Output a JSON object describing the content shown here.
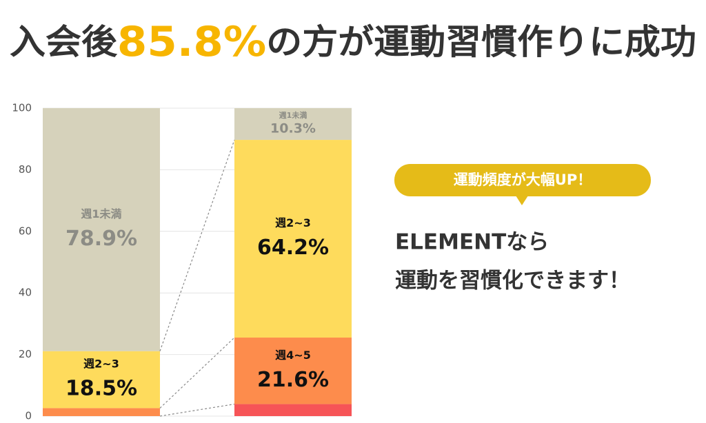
{
  "chart_data": {
    "type": "stacked_bar",
    "title": [
      "入会後",
      "85.8%",
      "の方が運動習慣作りに成功"
    ],
    "title_color": "#333333",
    "highlight_color": "#f7b500",
    "categories": [
      null,
      null
    ],
    "series": [
      {
        "name": null,
        "color": "#f65457",
        "values": [
          0,
          3.9
        ],
        "value_labels": [
          null,
          null
        ]
      },
      {
        "name": "週4~5",
        "color": "#fd8c4c",
        "values": [
          2.6,
          21.6
        ],
        "value_labels": [
          null,
          "21.6%"
        ]
      },
      {
        "name": "週2~3",
        "color": "#fedb5c",
        "values": [
          18.5,
          64.2
        ],
        "value_labels": [
          "18.5%",
          "64.2%"
        ]
      },
      {
        "name": "週1未満",
        "color": "#d6d2bb",
        "values": [
          78.9,
          10.3
        ],
        "value_labels": [
          "78.9%",
          "10.3%"
        ]
      }
    ],
    "ylim": [
      0,
      100
    ],
    "yticks": [
      0,
      20,
      40,
      60,
      80,
      100
    ],
    "grid": true,
    "annotations": [
      "運動頻度が大幅UP！",
      "ELEMENTなら",
      "運動を習慣化できます！"
    ]
  }
}
